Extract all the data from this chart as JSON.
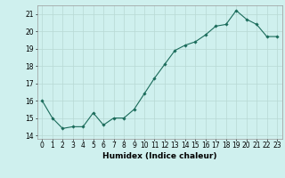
{
  "x": [
    0,
    1,
    2,
    3,
    4,
    5,
    6,
    7,
    8,
    9,
    10,
    11,
    12,
    13,
    14,
    15,
    16,
    17,
    18,
    19,
    20,
    21,
    22,
    23
  ],
  "y": [
    16.0,
    15.0,
    14.4,
    14.5,
    14.5,
    15.3,
    14.6,
    15.0,
    15.0,
    15.5,
    16.4,
    17.3,
    18.1,
    18.9,
    19.2,
    19.4,
    19.8,
    20.3,
    20.4,
    21.2,
    20.7,
    20.4,
    19.7,
    19.7
  ],
  "line_color": "#1a6b5a",
  "marker": "D",
  "marker_size": 1.8,
  "line_width": 0.8,
  "bg_color": "#cff0ee",
  "grid_color": "#b8d8d4",
  "xlabel": "Humidex (Indice chaleur)",
  "ylabel": "",
  "ylim": [
    13.8,
    21.5
  ],
  "yticks": [
    14,
    15,
    16,
    17,
    18,
    19,
    20,
    21
  ],
  "xlim": [
    -0.5,
    23.5
  ],
  "xticks": [
    0,
    1,
    2,
    3,
    4,
    5,
    6,
    7,
    8,
    9,
    10,
    11,
    12,
    13,
    14,
    15,
    16,
    17,
    18,
    19,
    20,
    21,
    22,
    23
  ],
  "tick_fontsize": 5.5,
  "xlabel_fontsize": 6.5
}
